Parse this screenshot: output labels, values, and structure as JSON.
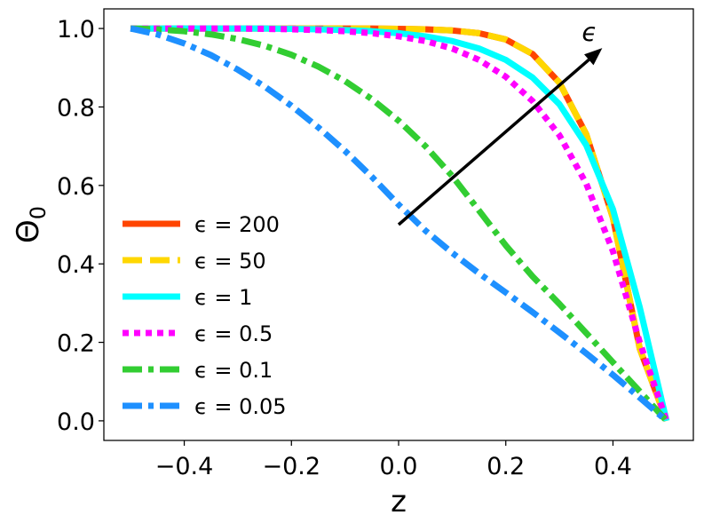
{
  "chart_data": {
    "type": "line",
    "title": "",
    "xlabel": "z",
    "ylabel_main": "Θ",
    "ylabel_sub": "0",
    "xlim": [
      -0.55,
      0.55
    ],
    "ylim": [
      -0.05,
      1.05
    ],
    "xticks": [
      -0.4,
      -0.2,
      0.0,
      0.2,
      0.4
    ],
    "xtick_labels": [
      "−0.4",
      "−0.2",
      "0.0",
      "0.2",
      "0.4"
    ],
    "yticks": [
      0.0,
      0.2,
      0.4,
      0.6,
      0.8,
      1.0
    ],
    "ytick_labels": [
      "0.0",
      "0.2",
      "0.4",
      "0.6",
      "0.8",
      "1.0"
    ],
    "grid": false,
    "legend_position": "lower-left",
    "annotation": {
      "text": "ϵ",
      "arrow_from": [
        0.0,
        0.5
      ],
      "arrow_to": [
        0.38,
        0.95
      ]
    },
    "x": [
      -0.5,
      -0.45,
      -0.4,
      -0.35,
      -0.3,
      -0.25,
      -0.2,
      -0.15,
      -0.1,
      -0.05,
      0.0,
      0.05,
      0.1,
      0.15,
      0.2,
      0.25,
      0.3,
      0.35,
      0.4,
      0.45,
      0.5
    ],
    "series": [
      {
        "name": "ϵ = 200",
        "color": "#ff4500",
        "style": "solid",
        "values": [
          1.0,
          1.0,
          1.0,
          1.0,
          1.0,
          1.0,
          1.0,
          1.0,
          1.0,
          1.0,
          0.999,
          0.998,
          0.995,
          0.988,
          0.972,
          0.935,
          0.862,
          0.731,
          0.517,
          0.184,
          0.0
        ]
      },
      {
        "name": "ϵ = 50",
        "color": "#ffd700",
        "style": "dashed",
        "values": [
          1.0,
          1.0,
          1.0,
          1.0,
          1.0,
          1.0,
          1.0,
          1.0,
          1.0,
          1.0,
          0.999,
          0.998,
          0.995,
          0.988,
          0.972,
          0.935,
          0.862,
          0.731,
          0.517,
          0.184,
          0.0
        ]
      },
      {
        "name": "ϵ = 1",
        "color": "#00ffff",
        "style": "solid",
        "values": [
          1.0,
          1.0,
          1.0,
          1.0,
          1.0,
          1.0,
          0.999,
          0.998,
          0.996,
          0.993,
          0.988,
          0.98,
          0.968,
          0.949,
          0.92,
          0.875,
          0.807,
          0.703,
          0.539,
          0.289,
          0.0
        ]
      },
      {
        "name": "ϵ = 0.5",
        "color": "#ff00ff",
        "style": "dotted",
        "values": [
          1.0,
          1.0,
          1.0,
          1.0,
          1.0,
          0.999,
          0.998,
          0.996,
          0.993,
          0.988,
          0.98,
          0.968,
          0.949,
          0.92,
          0.877,
          0.815,
          0.728,
          0.605,
          0.432,
          0.2,
          0.0
        ]
      },
      {
        "name": "ϵ = 0.1",
        "color": "#32cd32",
        "style": "dashdot",
        "values": [
          1.0,
          0.998,
          0.993,
          0.985,
          0.973,
          0.956,
          0.933,
          0.903,
          0.866,
          0.82,
          0.765,
          0.7,
          0.624,
          0.536,
          0.447,
          0.368,
          0.298,
          0.224,
          0.149,
          0.075,
          0.0
        ]
      },
      {
        "name": "ϵ = 0.05",
        "color": "#1e90ff",
        "style": "dashdot",
        "values": [
          1.0,
          0.985,
          0.962,
          0.932,
          0.895,
          0.852,
          0.803,
          0.748,
          0.688,
          0.622,
          0.551,
          0.485,
          0.428,
          0.376,
          0.327,
          0.277,
          0.225,
          0.172,
          0.117,
          0.059,
          0.0
        ]
      }
    ]
  }
}
